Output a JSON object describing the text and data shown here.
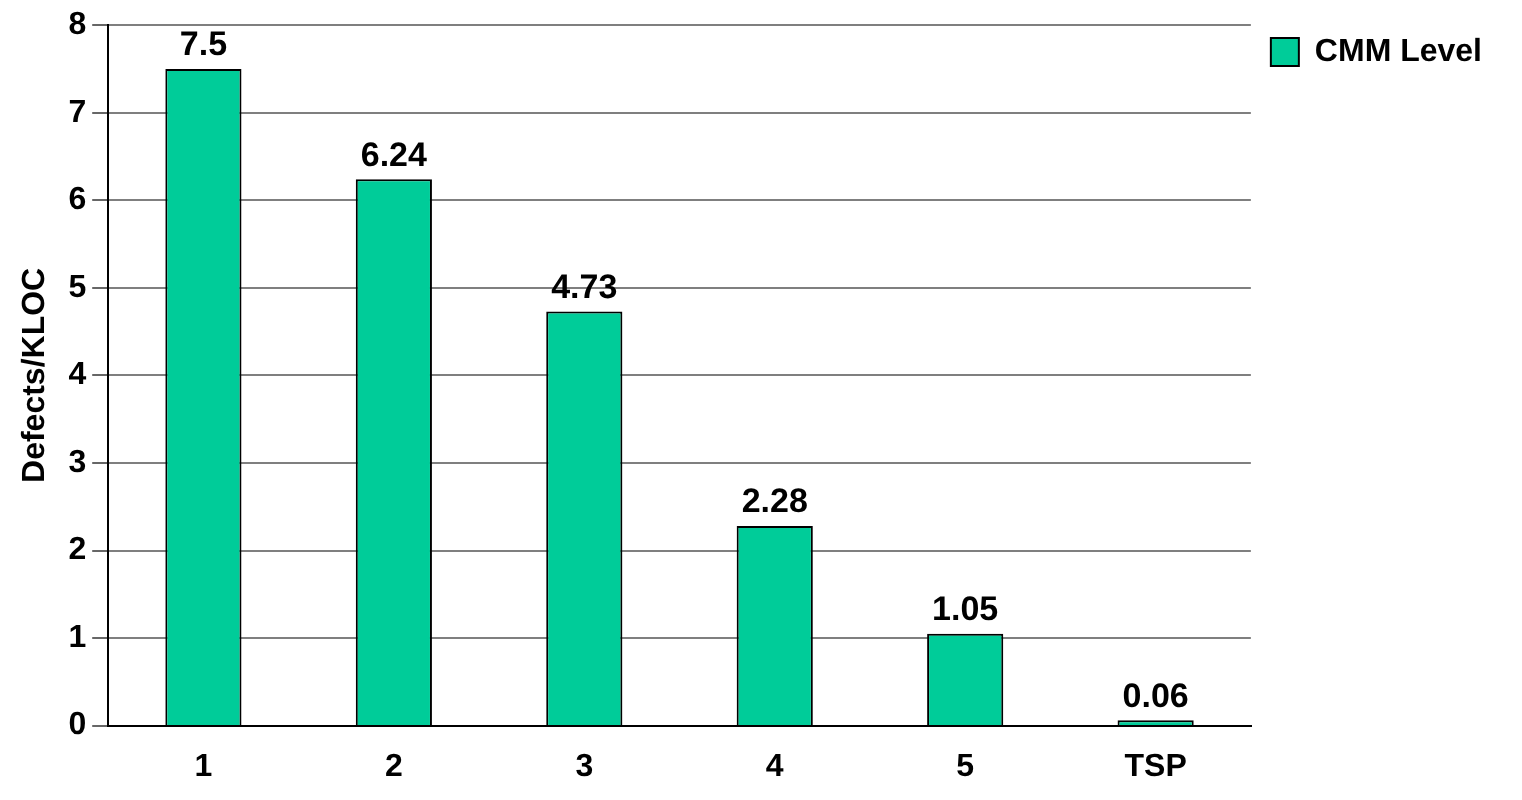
{
  "chart_data": {
    "type": "bar",
    "ylabel": "Defects/KLOC",
    "categories": [
      "1",
      "2",
      "3",
      "4",
      "5",
      "TSP"
    ],
    "series": [
      {
        "name": "CMM Level",
        "color": "#00cc99",
        "values": [
          7.5,
          6.24,
          4.73,
          2.28,
          1.05,
          0.06
        ]
      }
    ],
    "ylim": [
      0,
      8
    ],
    "yticks": [
      0,
      1,
      2,
      3,
      4,
      5,
      6,
      7,
      8
    ],
    "grid": "y",
    "legend": "top right",
    "data_labels": true
  }
}
